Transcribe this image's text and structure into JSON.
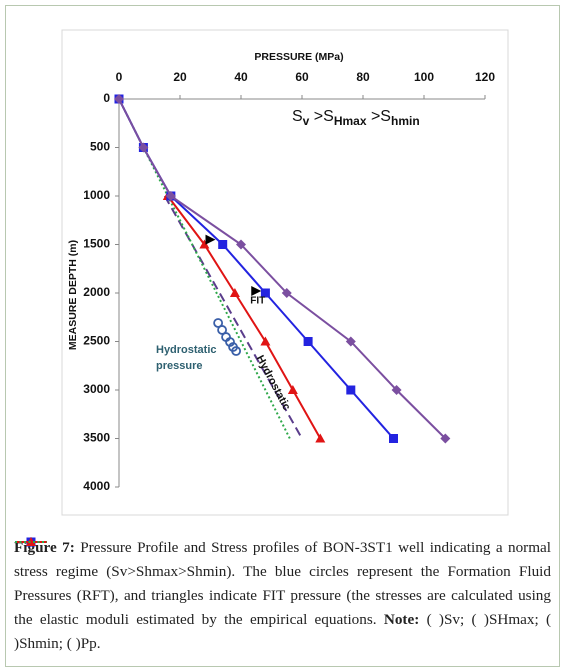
{
  "chart_data": {
    "type": "line",
    "x_title": "PRESSURE (MPa)",
    "y_title": "MEASURE DEPTH (m)",
    "xlim": [
      0,
      120
    ],
    "xticks": [
      0,
      20,
      40,
      60,
      80,
      100,
      120
    ],
    "ylim": [
      0,
      4000
    ],
    "yticks": [
      0,
      500,
      1000,
      1500,
      2000,
      2500,
      3000,
      3500,
      4000
    ],
    "y_inverted": true,
    "grid": false,
    "depths": [
      0,
      500,
      1000,
      1500,
      2000,
      2500,
      3000,
      3500
    ],
    "series": [
      {
        "name": "Sv",
        "color": "#7b4fa0",
        "marker": "diamond",
        "values": [
          0,
          8,
          17,
          40,
          55,
          76,
          91,
          107
        ]
      },
      {
        "name": "SHmax",
        "color": "#2323e0",
        "marker": "square",
        "values": [
          0,
          8,
          17,
          34,
          48,
          62,
          76,
          90
        ]
      },
      {
        "name": "Shmin",
        "color": "#e01414",
        "marker": "triangle",
        "values": [
          null,
          null,
          16,
          28,
          38,
          48,
          57,
          66
        ]
      },
      {
        "name": "Pp",
        "color": "#2ea84a",
        "marker": "none",
        "dash": "dotted",
        "values": [
          0,
          8,
          16,
          24,
          32,
          40,
          48,
          56
        ]
      }
    ],
    "hydrostatic_line": {
      "label": "Hydrostatic",
      "color": "#5b3d8c",
      "depths": [
        1000,
        3500
      ],
      "values": [
        15,
        60
      ]
    },
    "hydrostatic_pressure_label": [
      "Hydrostatic",
      "pressure"
    ],
    "rft_points": {
      "color": "#3a5fa8",
      "x": [
        32.5,
        33.8,
        35.1,
        36.4,
        37.4,
        38.4
      ],
      "y": [
        2309,
        2381,
        2454,
        2505,
        2557,
        2598
      ]
    },
    "fit_points": {
      "label": "FIT",
      "x": [
        30,
        45
      ],
      "y": [
        1450,
        1980
      ]
    },
    "equation": [
      "S",
      "v",
      " >S",
      "Hmax",
      " >S",
      "hmin"
    ]
  },
  "caption": {
    "figure_label": "Figure 7:",
    "text": "Pressure Profile and Stress profiles of BON-3ST1 well indicating a normal stress regime (Sv>Shmax>Shmin). The blue circles represent the Formation Fluid Pressures (RFT), and triangles indicate FIT pressure (the stresses are calculated using the elastic moduli estimated by the empirical equations.",
    "note_label": "Note:",
    "open": "(",
    "close": ")",
    "separator": ";",
    "end": "."
  }
}
